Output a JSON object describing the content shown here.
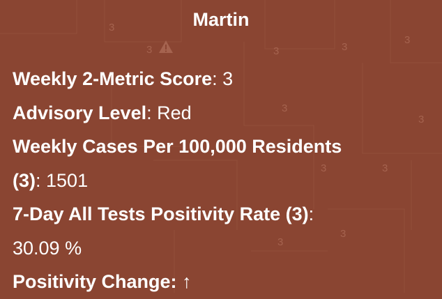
{
  "popup": {
    "title": "Martin",
    "score_label": "Weekly 2-Metric Score",
    "score_value": "3",
    "advisory_label": "Advisory Level",
    "advisory_value": "Red",
    "cases_label_a": "Weekly Cases Per 100,000 Residents",
    "cases_label_b": "(3)",
    "cases_value": "1501",
    "positivity_label": "7-Day All Tests Positivity Rate (3)",
    "positivity_value": "30.09 %",
    "change_label": "Positivity Change:",
    "change_arrow": "↑"
  },
  "map": {
    "county_score_label": "3",
    "background_color": "#8a4532"
  }
}
